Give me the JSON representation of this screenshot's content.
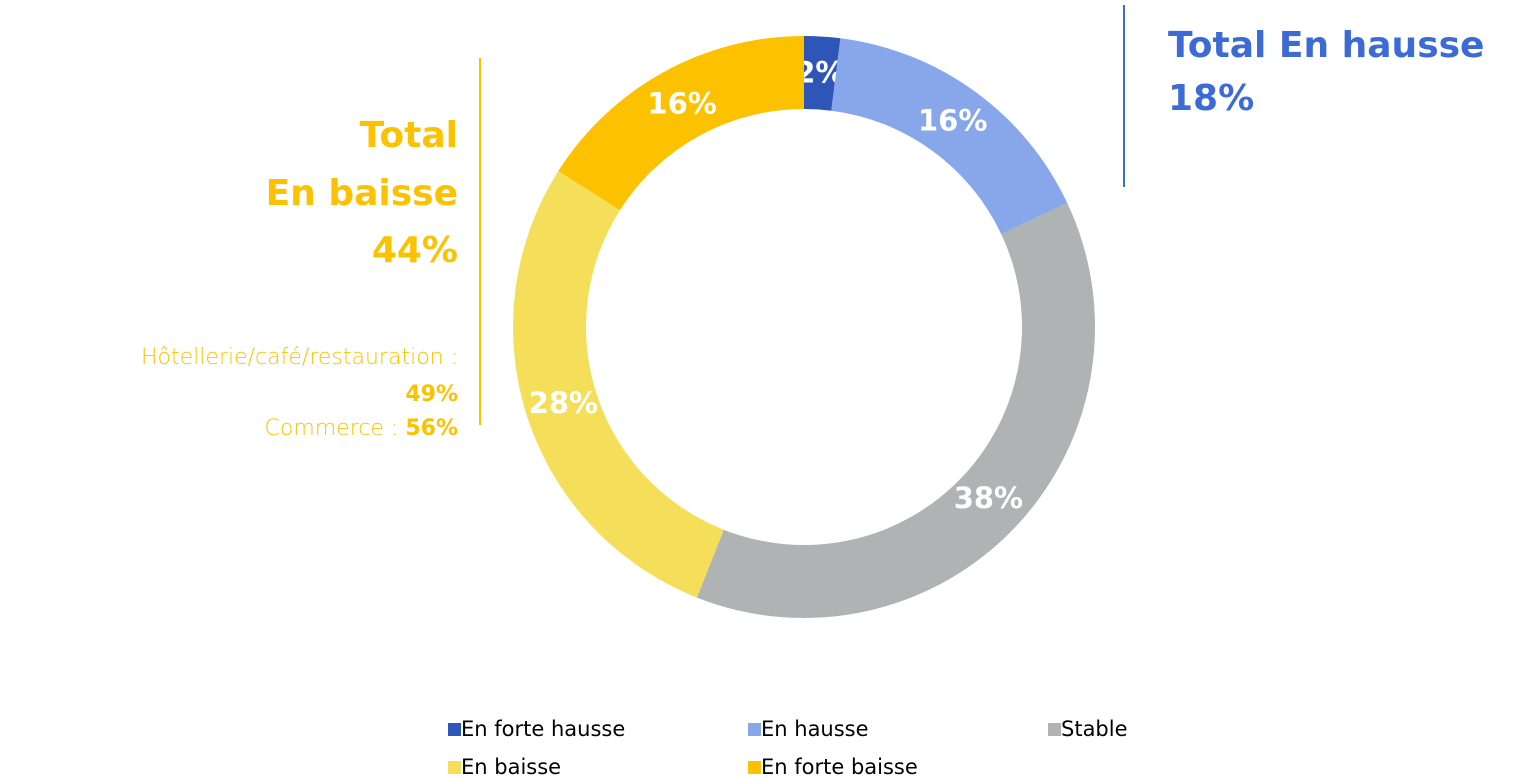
{
  "chart_data": {
    "type": "donut",
    "categories": [
      "En forte hausse",
      "En hausse",
      "Stable",
      "En baisse",
      "En forte baisse"
    ],
    "values": [
      2,
      16,
      38,
      28,
      16
    ],
    "value_labels": [
      "2%",
      "16%",
      "38%",
      "28%",
      "16%"
    ],
    "colors": [
      "#2e56b8",
      "#87a7ea",
      "#b0b3b3",
      "#f5df5a",
      "#fcc200"
    ],
    "annotations": {
      "up_total": [
        "Total En hausse",
        "18%"
      ],
      "down_total": [
        "Total",
        "En baisse",
        "44%"
      ],
      "notes": [
        "Hôtellerie/café/restauration :",
        "49%",
        "Commerce :",
        "56%"
      ]
    }
  }
}
